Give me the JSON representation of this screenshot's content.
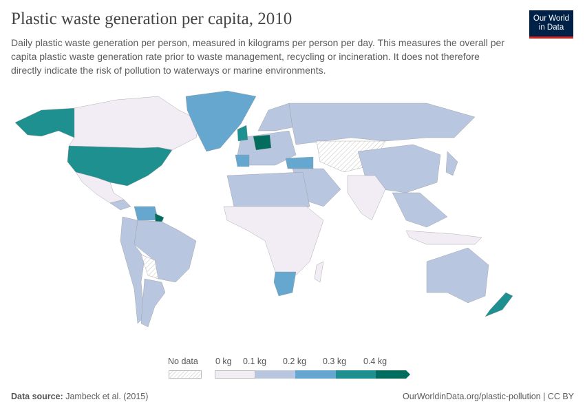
{
  "header": {
    "title": "Plastic waste generation per capita, 2010",
    "subtitle": "Daily plastic waste generation per person, measured in kilograms per person per day. This measures the overall per capita plastic waste generation rate prior to waste management, recycling or incineration. It does not therefore directly indicate the risk of pollution to waterways or marine environments.",
    "logo": "Our World in Data"
  },
  "legend": {
    "no_data": "No data",
    "ticks": [
      "0 kg",
      "0.1 kg",
      "0.2 kg",
      "0.3 kg",
      "0.4 kg"
    ],
    "colors": [
      "#f2ecf5",
      "#b9c6e0",
      "#65a7ce",
      "#1f9090",
      "#026c5e"
    ],
    "no_data_pattern": "hatched"
  },
  "footer": {
    "source_label": "Data source:",
    "source": "Jambeck et al. (2015)",
    "link": "OurWorldinData.org/plastic-pollution | CC BY"
  }
}
